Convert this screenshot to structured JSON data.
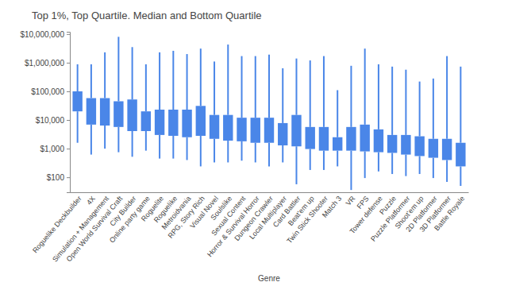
{
  "chart_data": {
    "type": "box",
    "title": "Top 1%, Top Quartile. Median and Bottom Quartile",
    "x_label": "Genre",
    "categories": [
      "Roguelike Deckbuilder",
      "4X",
      "Simulation + Management",
      "Open World Survival Craft",
      "City Builder",
      "Online party game",
      "Roguelite",
      "Roguelike",
      "Metroidvania",
      "RPG, Story Rich",
      "Visual Novel",
      "Soulslike",
      "Sexual Content",
      "Horror & Survival Horror",
      "Dungeon Crawler",
      "Local Multiplayer",
      "Card Battler",
      "Beat'em up",
      "Twin Stick Shooter",
      "Match 3",
      "VR",
      "FPS",
      "Tower defense",
      "Puzzle",
      "Puzzle Platformer",
      "Shoot'em up",
      "2D Platformer",
      "3D Platformer",
      "Battle Royale"
    ],
    "top_1_percent": [
      880000,
      880000,
      2300000,
      8000000,
      3500000,
      880000,
      2300000,
      2600000,
      2000000,
      3100000,
      1100000,
      4300000,
      1700000,
      1700000,
      1900000,
      640000,
      1400000,
      1200000,
      1700000,
      110000,
      780000,
      3100000,
      880000,
      730000,
      570000,
      220000,
      280000,
      1700000,
      730000
    ],
    "top_quartile": [
      100000,
      58000,
      58000,
      45000,
      52000,
      20000,
      23000,
      23000,
      23000,
      31000,
      15000,
      15000,
      12000,
      12000,
      12000,
      7800,
      15000,
      5700,
      5700,
      2500,
      5700,
      6900,
      4700,
      3000,
      3000,
      2700,
      2200,
      2200,
      1600
    ],
    "median": [
      20000,
      6900,
      6400,
      5700,
      4100,
      4100,
      3000,
      2800,
      2500,
      2800,
      2200,
      1900,
      1800,
      1600,
      1600,
      1300,
      1200,
      970,
      850,
      850,
      850,
      800,
      750,
      710,
      620,
      550,
      480,
      400,
      240
    ],
    "bottom_quartile": [
      1600,
      620,
      1000,
      750,
      520,
      850,
      450,
      450,
      400,
      240,
      330,
      330,
      380,
      330,
      240,
      330,
      57,
      180,
      180,
      240,
      36,
      94,
      160,
      130,
      110,
      130,
      94,
      69,
      50
    ],
    "color": "#4a86e8",
    "log": "y",
    "grid": false,
    "ylim": [
      30,
      12000000
    ],
    "yticks": [
      {
        "value": 100,
        "label": "$100"
      },
      {
        "value": 1000,
        "label": "$1,000"
      },
      {
        "value": 10000,
        "label": "$10,000"
      },
      {
        "value": 100000,
        "label": "$100,000"
      },
      {
        "value": 1000000,
        "label": "$1,000,000"
      },
      {
        "value": 10000000,
        "label": "$10,000,000"
      }
    ]
  }
}
